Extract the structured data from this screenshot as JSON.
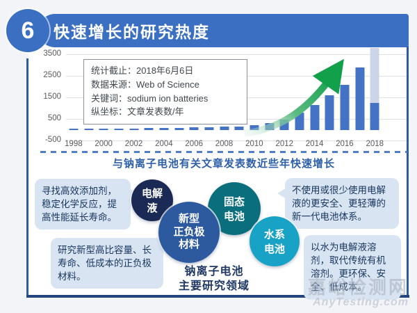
{
  "header": {
    "number": "6",
    "title": "快速增长的研究热度"
  },
  "chart_data": {
    "type": "bar",
    "x": [
      1998,
      1999,
      2000,
      2001,
      2002,
      2003,
      2004,
      2005,
      2006,
      2007,
      2008,
      2009,
      2010,
      2011,
      2012,
      2013,
      2014,
      2015,
      2016,
      2017,
      2018
    ],
    "values": [
      40,
      45,
      50,
      55,
      60,
      70,
      80,
      90,
      100,
      120,
      150,
      160,
      220,
      300,
      470,
      800,
      1130,
      1600,
      2070,
      2900,
      1250
    ],
    "projected_2018_total": 3800,
    "ylim": [
      -500,
      3500
    ],
    "yticks": [
      3500,
      2500,
      1500,
      500,
      -500
    ],
    "xtick_step": 2,
    "grid": "horizontal",
    "colors": {
      "bar": "#4472c4",
      "projected": "#ccd5e8"
    },
    "caption": "与钠离子电池有关文章发表数近些年快速增长",
    "info_box_lines": [
      "统计截止：2018年6月6日",
      "数据来源：Web of Science",
      "关键词：sodium ion batteries",
      "纵坐标：文章发表数/年"
    ]
  },
  "research_areas": {
    "caption": "钠离子电池\n主要研究领域",
    "circles": [
      {
        "label": "电解\n液",
        "color": "#1b2a55"
      },
      {
        "label": "新型\n正负极\n材料",
        "color": "#2d5a9e"
      },
      {
        "label": "固态\n电池",
        "color": "#0b6e7d"
      },
      {
        "label": "水系\n电池",
        "color": "#17a2c6"
      }
    ],
    "notes": [
      "寻找高效添加剂，稳定化学反应，提高性能延长寿命。",
      "研究新型高比容量、长寿命、低成本的正负极材料。",
      "不使用或很少使用电解液的更安全、更轻薄的新一代电池体系。",
      "以水为电解液溶剂，取代传统有机溶剂。更环保、安全、低成本。"
    ]
  },
  "watermark": {
    "line1": "嘉峪检测网",
    "line2": "AnyTesting.com"
  }
}
